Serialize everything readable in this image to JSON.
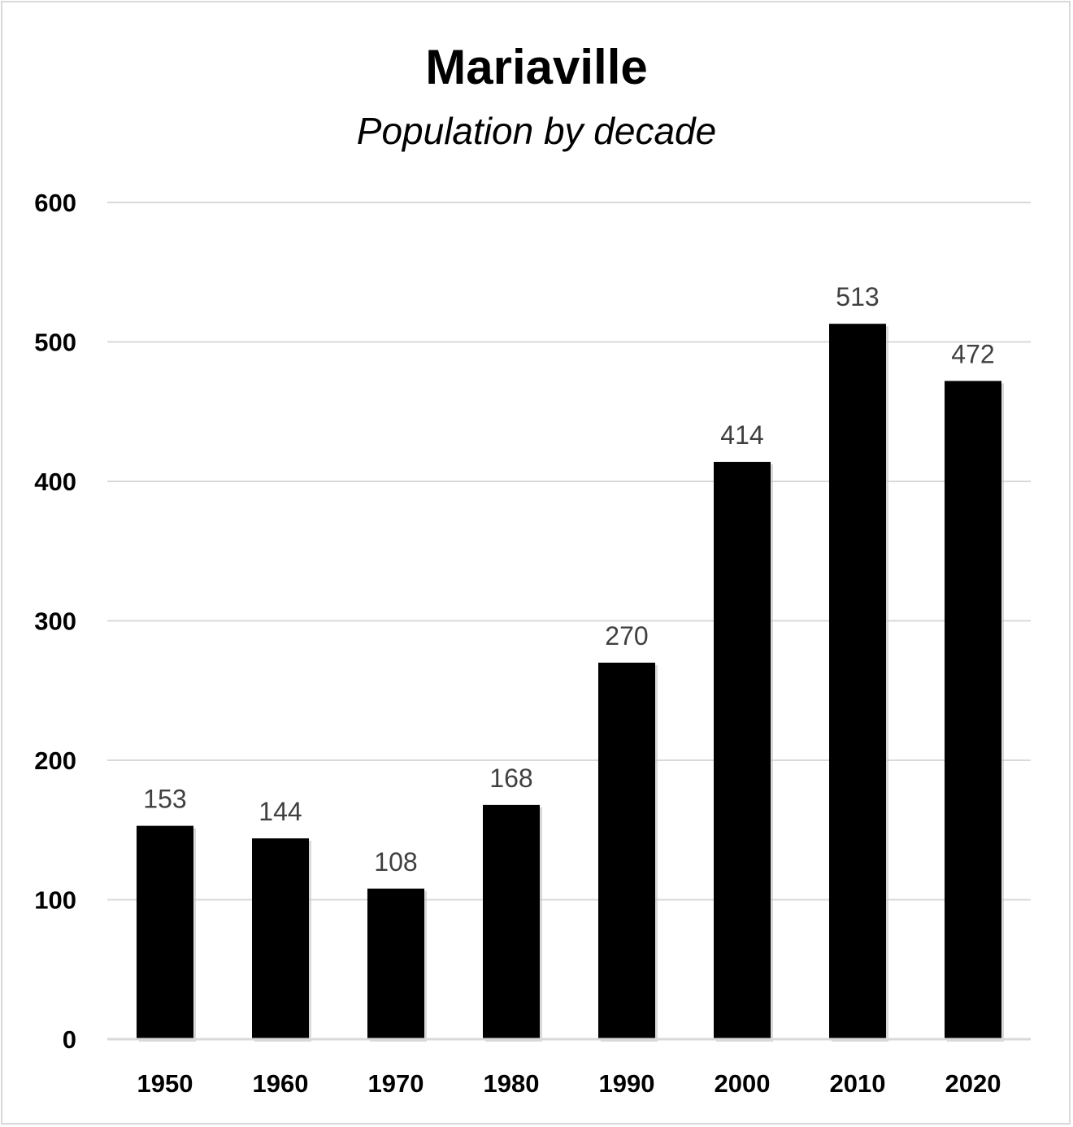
{
  "chart_data": {
    "type": "bar",
    "title": "Mariaville",
    "subtitle": "Population by decade",
    "xlabel": "",
    "ylabel": "",
    "categories": [
      "1950",
      "1960",
      "1970",
      "1980",
      "1990",
      "2000",
      "2010",
      "2020"
    ],
    "values": [
      153,
      144,
      108,
      168,
      270,
      414,
      513,
      472
    ],
    "ylim": [
      0,
      600
    ],
    "yticks": [
      0,
      100,
      200,
      300,
      400,
      500,
      600
    ],
    "grid": true,
    "data_labels": true,
    "bar_color": "#000000",
    "grid_color": "#d9d9d9",
    "label_color": "#404040"
  }
}
